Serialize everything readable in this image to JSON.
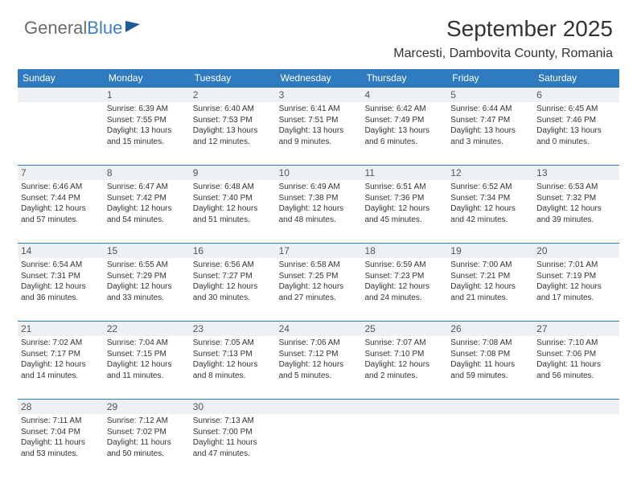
{
  "logo": {
    "text1": "General",
    "text2": "Blue"
  },
  "title": "September 2025",
  "location": "Marcesti, Dambovita County, Romania",
  "header_bg": "#2f7bbf",
  "daynum_bg": "#eef1f3",
  "text_color": "#333333",
  "columns": [
    "Sunday",
    "Monday",
    "Tuesday",
    "Wednesday",
    "Thursday",
    "Friday",
    "Saturday"
  ],
  "weeks": [
    [
      {
        "n": "",
        "sr": "",
        "ss": "",
        "dl1": "",
        "dl2": ""
      },
      {
        "n": "1",
        "sr": "Sunrise: 6:39 AM",
        "ss": "Sunset: 7:55 PM",
        "dl1": "Daylight: 13 hours",
        "dl2": "and 15 minutes."
      },
      {
        "n": "2",
        "sr": "Sunrise: 6:40 AM",
        "ss": "Sunset: 7:53 PM",
        "dl1": "Daylight: 13 hours",
        "dl2": "and 12 minutes."
      },
      {
        "n": "3",
        "sr": "Sunrise: 6:41 AM",
        "ss": "Sunset: 7:51 PM",
        "dl1": "Daylight: 13 hours",
        "dl2": "and 9 minutes."
      },
      {
        "n": "4",
        "sr": "Sunrise: 6:42 AM",
        "ss": "Sunset: 7:49 PM",
        "dl1": "Daylight: 13 hours",
        "dl2": "and 6 minutes."
      },
      {
        "n": "5",
        "sr": "Sunrise: 6:44 AM",
        "ss": "Sunset: 7:47 PM",
        "dl1": "Daylight: 13 hours",
        "dl2": "and 3 minutes."
      },
      {
        "n": "6",
        "sr": "Sunrise: 6:45 AM",
        "ss": "Sunset: 7:46 PM",
        "dl1": "Daylight: 13 hours",
        "dl2": "and 0 minutes."
      }
    ],
    [
      {
        "n": "7",
        "sr": "Sunrise: 6:46 AM",
        "ss": "Sunset: 7:44 PM",
        "dl1": "Daylight: 12 hours",
        "dl2": "and 57 minutes."
      },
      {
        "n": "8",
        "sr": "Sunrise: 6:47 AM",
        "ss": "Sunset: 7:42 PM",
        "dl1": "Daylight: 12 hours",
        "dl2": "and 54 minutes."
      },
      {
        "n": "9",
        "sr": "Sunrise: 6:48 AM",
        "ss": "Sunset: 7:40 PM",
        "dl1": "Daylight: 12 hours",
        "dl2": "and 51 minutes."
      },
      {
        "n": "10",
        "sr": "Sunrise: 6:49 AM",
        "ss": "Sunset: 7:38 PM",
        "dl1": "Daylight: 12 hours",
        "dl2": "and 48 minutes."
      },
      {
        "n": "11",
        "sr": "Sunrise: 6:51 AM",
        "ss": "Sunset: 7:36 PM",
        "dl1": "Daylight: 12 hours",
        "dl2": "and 45 minutes."
      },
      {
        "n": "12",
        "sr": "Sunrise: 6:52 AM",
        "ss": "Sunset: 7:34 PM",
        "dl1": "Daylight: 12 hours",
        "dl2": "and 42 minutes."
      },
      {
        "n": "13",
        "sr": "Sunrise: 6:53 AM",
        "ss": "Sunset: 7:32 PM",
        "dl1": "Daylight: 12 hours",
        "dl2": "and 39 minutes."
      }
    ],
    [
      {
        "n": "14",
        "sr": "Sunrise: 6:54 AM",
        "ss": "Sunset: 7:31 PM",
        "dl1": "Daylight: 12 hours",
        "dl2": "and 36 minutes."
      },
      {
        "n": "15",
        "sr": "Sunrise: 6:55 AM",
        "ss": "Sunset: 7:29 PM",
        "dl1": "Daylight: 12 hours",
        "dl2": "and 33 minutes."
      },
      {
        "n": "16",
        "sr": "Sunrise: 6:56 AM",
        "ss": "Sunset: 7:27 PM",
        "dl1": "Daylight: 12 hours",
        "dl2": "and 30 minutes."
      },
      {
        "n": "17",
        "sr": "Sunrise: 6:58 AM",
        "ss": "Sunset: 7:25 PM",
        "dl1": "Daylight: 12 hours",
        "dl2": "and 27 minutes."
      },
      {
        "n": "18",
        "sr": "Sunrise: 6:59 AM",
        "ss": "Sunset: 7:23 PM",
        "dl1": "Daylight: 12 hours",
        "dl2": "and 24 minutes."
      },
      {
        "n": "19",
        "sr": "Sunrise: 7:00 AM",
        "ss": "Sunset: 7:21 PM",
        "dl1": "Daylight: 12 hours",
        "dl2": "and 21 minutes."
      },
      {
        "n": "20",
        "sr": "Sunrise: 7:01 AM",
        "ss": "Sunset: 7:19 PM",
        "dl1": "Daylight: 12 hours",
        "dl2": "and 17 minutes."
      }
    ],
    [
      {
        "n": "21",
        "sr": "Sunrise: 7:02 AM",
        "ss": "Sunset: 7:17 PM",
        "dl1": "Daylight: 12 hours",
        "dl2": "and 14 minutes."
      },
      {
        "n": "22",
        "sr": "Sunrise: 7:04 AM",
        "ss": "Sunset: 7:15 PM",
        "dl1": "Daylight: 12 hours",
        "dl2": "and 11 minutes."
      },
      {
        "n": "23",
        "sr": "Sunrise: 7:05 AM",
        "ss": "Sunset: 7:13 PM",
        "dl1": "Daylight: 12 hours",
        "dl2": "and 8 minutes."
      },
      {
        "n": "24",
        "sr": "Sunrise: 7:06 AM",
        "ss": "Sunset: 7:12 PM",
        "dl1": "Daylight: 12 hours",
        "dl2": "and 5 minutes."
      },
      {
        "n": "25",
        "sr": "Sunrise: 7:07 AM",
        "ss": "Sunset: 7:10 PM",
        "dl1": "Daylight: 12 hours",
        "dl2": "and 2 minutes."
      },
      {
        "n": "26",
        "sr": "Sunrise: 7:08 AM",
        "ss": "Sunset: 7:08 PM",
        "dl1": "Daylight: 11 hours",
        "dl2": "and 59 minutes."
      },
      {
        "n": "27",
        "sr": "Sunrise: 7:10 AM",
        "ss": "Sunset: 7:06 PM",
        "dl1": "Daylight: 11 hours",
        "dl2": "and 56 minutes."
      }
    ],
    [
      {
        "n": "28",
        "sr": "Sunrise: 7:11 AM",
        "ss": "Sunset: 7:04 PM",
        "dl1": "Daylight: 11 hours",
        "dl2": "and 53 minutes."
      },
      {
        "n": "29",
        "sr": "Sunrise: 7:12 AM",
        "ss": "Sunset: 7:02 PM",
        "dl1": "Daylight: 11 hours",
        "dl2": "and 50 minutes."
      },
      {
        "n": "30",
        "sr": "Sunrise: 7:13 AM",
        "ss": "Sunset: 7:00 PM",
        "dl1": "Daylight: 11 hours",
        "dl2": "and 47 minutes."
      },
      {
        "n": "",
        "sr": "",
        "ss": "",
        "dl1": "",
        "dl2": ""
      },
      {
        "n": "",
        "sr": "",
        "ss": "",
        "dl1": "",
        "dl2": ""
      },
      {
        "n": "",
        "sr": "",
        "ss": "",
        "dl1": "",
        "dl2": ""
      },
      {
        "n": "",
        "sr": "",
        "ss": "",
        "dl1": "",
        "dl2": ""
      }
    ]
  ]
}
